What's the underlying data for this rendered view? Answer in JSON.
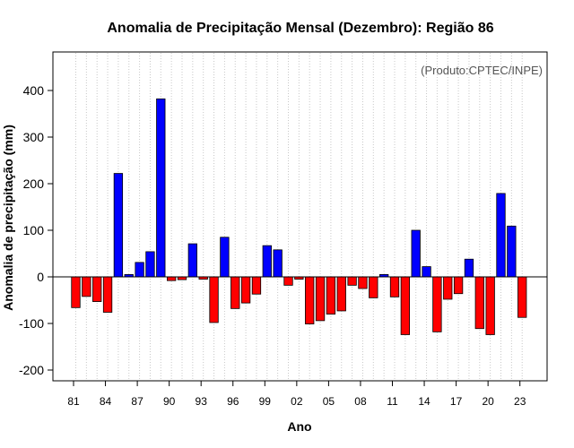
{
  "chart_data": {
    "type": "bar",
    "title": "Anomalia de Precipitação Mensal (Dezembro): Região 86",
    "annotation": "(Produto:CPTEC/INPE)",
    "xlabel": "Ano",
    "ylabel": "Anomalia de precipitação (mm)",
    "ylim": [
      -225,
      480
    ],
    "yticks": [
      -200,
      -100,
      0,
      100,
      200,
      300,
      400
    ],
    "xtick_labels": [
      "81",
      "84",
      "87",
      "90",
      "93",
      "96",
      "99",
      "02",
      "05",
      "08",
      "11",
      "14",
      "17",
      "20",
      "23"
    ],
    "categories": [
      "1981",
      "1982",
      "1983",
      "1984",
      "1985",
      "1986",
      "1987",
      "1988",
      "1989",
      "1990",
      "1991",
      "1992",
      "1993",
      "1994",
      "1995",
      "1996",
      "1997",
      "1998",
      "1999",
      "2000",
      "2001",
      "2002",
      "2003",
      "2004",
      "2005",
      "2006",
      "2007",
      "2008",
      "2009",
      "2010",
      "2011",
      "2012",
      "2013",
      "2014",
      "2015",
      "2016",
      "2017",
      "2018",
      "2019",
      "2020",
      "2021",
      "2022",
      "2023"
    ],
    "values": [
      -66,
      -42,
      -53,
      -76,
      222,
      5,
      31,
      54,
      382,
      -8,
      -6,
      71,
      -5,
      -98,
      85,
      -68,
      -56,
      -37,
      67,
      58,
      -18,
      -5,
      -101,
      -94,
      -80,
      -73,
      -18,
      -25,
      -45,
      5,
      -43,
      -124,
      100,
      22,
      -118,
      -48,
      -36,
      38,
      -111,
      -124,
      179,
      109,
      -87
    ],
    "colors": {
      "positive": "#0000ff",
      "negative": "#ff0000",
      "zero_line": "#000000",
      "grid": "#c8c8c8"
    }
  }
}
